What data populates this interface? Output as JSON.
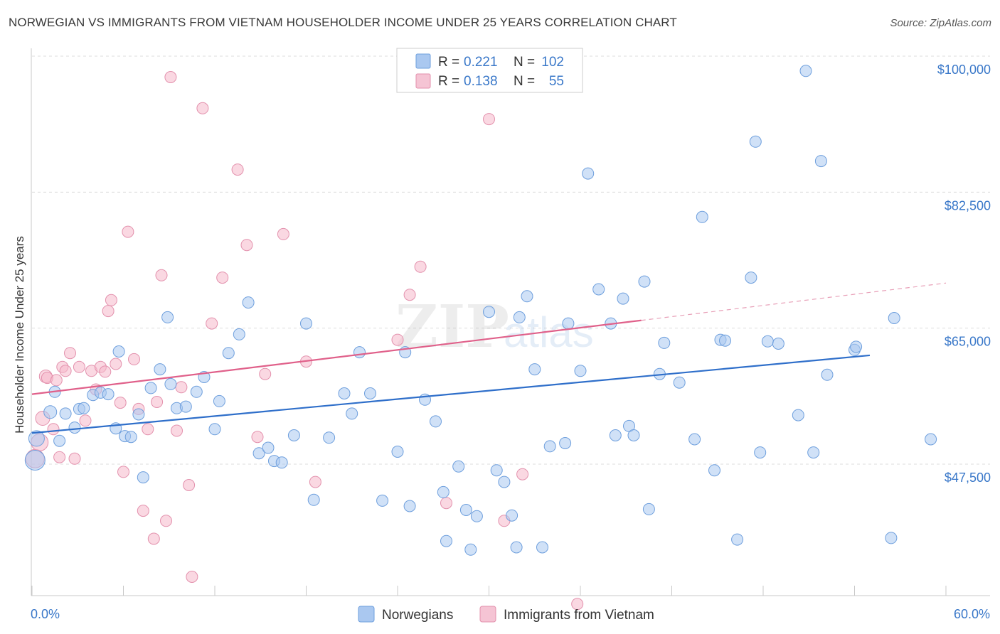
{
  "header": {
    "title": "NORWEGIAN VS IMMIGRANTS FROM VIETNAM HOUSEHOLDER INCOME UNDER 25 YEARS CORRELATION CHART",
    "source": "Source: ZipAtlas.com"
  },
  "colors": {
    "blue": "#3a78c9",
    "blue_fill": "#aac8f0",
    "pink": "#e0608a",
    "pink_fill": "#f5b8cb",
    "grid": "#d8d8d8",
    "axis_label": "#3a78c9"
  },
  "legend_top": {
    "rows": [
      {
        "r_label": "R =",
        "r_value": "0.221",
        "n_label": "N =",
        "n_value": "102"
      },
      {
        "r_label": "R =",
        "r_value": "0.138",
        "n_label": "N =",
        "n_value": "55"
      }
    ]
  },
  "legend_bottom": {
    "items": [
      "Norwegians",
      "Immigrants from Vietnam"
    ]
  },
  "watermark": {
    "part1": "ZIP",
    "part2": "atlas"
  },
  "chart_data": {
    "type": "scatter",
    "ylabel": "Householder Income Under 25 years",
    "xlim": [
      0,
      60
    ],
    "ylim": [
      32000,
      103000
    ],
    "x_tick_labels": [
      "0.0%",
      "60.0%"
    ],
    "y_ticks": [
      47500,
      65000,
      82500,
      100000
    ],
    "y_tick_labels": [
      "$47,500",
      "$65,000",
      "$82,500",
      "$100,000"
    ],
    "grid": true,
    "series": [
      {
        "name": "Norwegians",
        "color": "#3a78c9",
        "trend": {
          "x": [
            0,
            55
          ],
          "y": [
            51500,
            61500
          ]
        },
        "points": [
          [
            0.2,
            48000,
            14
          ],
          [
            0.3,
            50800,
            11
          ],
          [
            1.2,
            54200,
            9
          ],
          [
            1.5,
            56800,
            8
          ],
          [
            1.8,
            50500,
            8
          ],
          [
            2.2,
            54000,
            8
          ],
          [
            2.8,
            52200,
            8
          ],
          [
            3.1,
            54600,
            8
          ],
          [
            3.4,
            54700,
            8
          ],
          [
            4.0,
            56400,
            8
          ],
          [
            4.5,
            56700,
            8
          ],
          [
            5.0,
            56500,
            8
          ],
          [
            5.5,
            52100,
            8
          ],
          [
            5.7,
            62000,
            8
          ],
          [
            6.1,
            51100,
            8
          ],
          [
            6.5,
            51000,
            8
          ],
          [
            7.0,
            53900,
            8
          ],
          [
            7.3,
            45800,
            8
          ],
          [
            7.8,
            57300,
            8
          ],
          [
            8.4,
            59700,
            8
          ],
          [
            8.9,
            66400,
            8
          ],
          [
            9.1,
            57800,
            8
          ],
          [
            9.5,
            54700,
            8
          ],
          [
            10.1,
            54900,
            8
          ],
          [
            10.8,
            56800,
            8
          ],
          [
            11.3,
            58700,
            8
          ],
          [
            12.0,
            52000,
            8
          ],
          [
            12.3,
            55600,
            8
          ],
          [
            12.9,
            61800,
            8
          ],
          [
            13.6,
            64200,
            8
          ],
          [
            14.2,
            68300,
            8
          ],
          [
            14.9,
            48900,
            8
          ],
          [
            15.5,
            49600,
            8
          ],
          [
            15.9,
            47900,
            8
          ],
          [
            16.4,
            47700,
            8
          ],
          [
            17.2,
            51200,
            8
          ],
          [
            18.0,
            65600,
            8
          ],
          [
            18.5,
            42900,
            8
          ],
          [
            19.5,
            50900,
            8
          ],
          [
            20.5,
            56600,
            8
          ],
          [
            21.0,
            54000,
            8
          ],
          [
            21.5,
            61900,
            8
          ],
          [
            22.2,
            56600,
            8
          ],
          [
            23.0,
            42800,
            8
          ],
          [
            24.0,
            49100,
            8
          ],
          [
            24.5,
            61900,
            8
          ],
          [
            24.8,
            42100,
            8
          ],
          [
            25.8,
            55800,
            8
          ],
          [
            26.5,
            53000,
            8
          ],
          [
            27.0,
            43900,
            8
          ],
          [
            27.2,
            37600,
            8
          ],
          [
            28.0,
            47200,
            8
          ],
          [
            28.5,
            41600,
            8
          ],
          [
            28.8,
            36500,
            8
          ],
          [
            29.2,
            40800,
            8
          ],
          [
            30.0,
            67100,
            8
          ],
          [
            30.5,
            46700,
            8
          ],
          [
            31.0,
            45200,
            8
          ],
          [
            31.5,
            40900,
            8
          ],
          [
            31.8,
            36800,
            8
          ],
          [
            32.0,
            66400,
            8
          ],
          [
            32.5,
            69100,
            8
          ],
          [
            33.0,
            59700,
            8
          ],
          [
            33.5,
            36800,
            8
          ],
          [
            34.0,
            49800,
            8
          ],
          [
            35.0,
            50200,
            8
          ],
          [
            35.2,
            65600,
            8
          ],
          [
            36.0,
            59500,
            8
          ],
          [
            36.5,
            84900,
            8
          ],
          [
            37.2,
            70000,
            8
          ],
          [
            38.0,
            65600,
            8
          ],
          [
            38.3,
            51200,
            8
          ],
          [
            38.8,
            68800,
            8
          ],
          [
            39.2,
            52400,
            8
          ],
          [
            39.5,
            51200,
            8
          ],
          [
            40.2,
            71000,
            8
          ],
          [
            40.5,
            41700,
            8
          ],
          [
            41.2,
            59100,
            8
          ],
          [
            41.5,
            63100,
            8
          ],
          [
            42.5,
            58000,
            8
          ],
          [
            43.5,
            50700,
            8
          ],
          [
            44.0,
            79300,
            8
          ],
          [
            44.8,
            46700,
            8
          ],
          [
            45.2,
            63500,
            8
          ],
          [
            45.5,
            63400,
            8
          ],
          [
            46.3,
            37800,
            8
          ],
          [
            47.2,
            71500,
            8
          ],
          [
            47.5,
            89000,
            8
          ],
          [
            47.8,
            49000,
            8
          ],
          [
            48.3,
            63300,
            8
          ],
          [
            49.0,
            63000,
            8
          ],
          [
            50.3,
            53800,
            8
          ],
          [
            50.8,
            98100,
            8
          ],
          [
            51.3,
            49000,
            8
          ],
          [
            51.8,
            86500,
            8
          ],
          [
            52.2,
            59000,
            8
          ],
          [
            54.0,
            62200,
            8
          ],
          [
            54.1,
            62600,
            8
          ],
          [
            56.4,
            38000,
            8
          ],
          [
            56.6,
            66300,
            8
          ],
          [
            59.0,
            50700,
            8
          ]
        ]
      },
      {
        "name": "Immigrants from Vietnam",
        "color": "#e0608a",
        "trend": {
          "x": [
            0,
            40
          ],
          "y": [
            56500,
            66000
          ]
        },
        "trend_dashed": {
          "x": [
            40,
            60
          ],
          "y": [
            66000,
            70800
          ]
        },
        "points": [
          [
            0.2,
            48200,
            13
          ],
          [
            0.5,
            50300,
            12
          ],
          [
            0.7,
            53400,
            10
          ],
          [
            0.9,
            58800,
            9
          ],
          [
            1.0,
            58600,
            8
          ],
          [
            1.4,
            52000,
            8
          ],
          [
            1.6,
            58300,
            8
          ],
          [
            1.8,
            48400,
            8
          ],
          [
            2.0,
            60000,
            8
          ],
          [
            2.2,
            59500,
            8
          ],
          [
            2.5,
            61800,
            8
          ],
          [
            2.8,
            48200,
            8
          ],
          [
            3.1,
            60000,
            8
          ],
          [
            3.5,
            53100,
            8
          ],
          [
            3.9,
            59500,
            8
          ],
          [
            4.2,
            57100,
            8
          ],
          [
            4.5,
            60000,
            8
          ],
          [
            4.8,
            59400,
            8
          ],
          [
            5.0,
            67200,
            8
          ],
          [
            5.2,
            68600,
            8
          ],
          [
            5.5,
            60400,
            8
          ],
          [
            5.8,
            55400,
            8
          ],
          [
            6.0,
            46500,
            8
          ],
          [
            6.3,
            77400,
            8
          ],
          [
            6.7,
            61000,
            8
          ],
          [
            7.0,
            54600,
            8
          ],
          [
            7.3,
            41500,
            8
          ],
          [
            7.6,
            52000,
            8
          ],
          [
            8.0,
            37900,
            8
          ],
          [
            8.2,
            55500,
            8
          ],
          [
            8.5,
            71800,
            8
          ],
          [
            8.8,
            40200,
            8
          ],
          [
            9.1,
            97300,
            8
          ],
          [
            9.5,
            51800,
            8
          ],
          [
            9.8,
            57400,
            8
          ],
          [
            10.3,
            44800,
            8
          ],
          [
            10.5,
            33000,
            8
          ],
          [
            11.2,
            93300,
            8
          ],
          [
            11.8,
            65600,
            8
          ],
          [
            12.5,
            71500,
            8
          ],
          [
            13.5,
            85400,
            8
          ],
          [
            14.1,
            75700,
            8
          ],
          [
            14.8,
            51000,
            8
          ],
          [
            15.3,
            59100,
            8
          ],
          [
            16.5,
            77100,
            8
          ],
          [
            18.0,
            60700,
            8
          ],
          [
            18.6,
            45200,
            8
          ],
          [
            24.0,
            63500,
            8
          ],
          [
            24.8,
            69300,
            8
          ],
          [
            25.5,
            72900,
            8
          ],
          [
            27.2,
            42500,
            8
          ],
          [
            30.0,
            91900,
            8
          ],
          [
            31.0,
            40200,
            8
          ],
          [
            32.2,
            46200,
            8
          ],
          [
            35.8,
            29500,
            8
          ]
        ]
      }
    ]
  }
}
